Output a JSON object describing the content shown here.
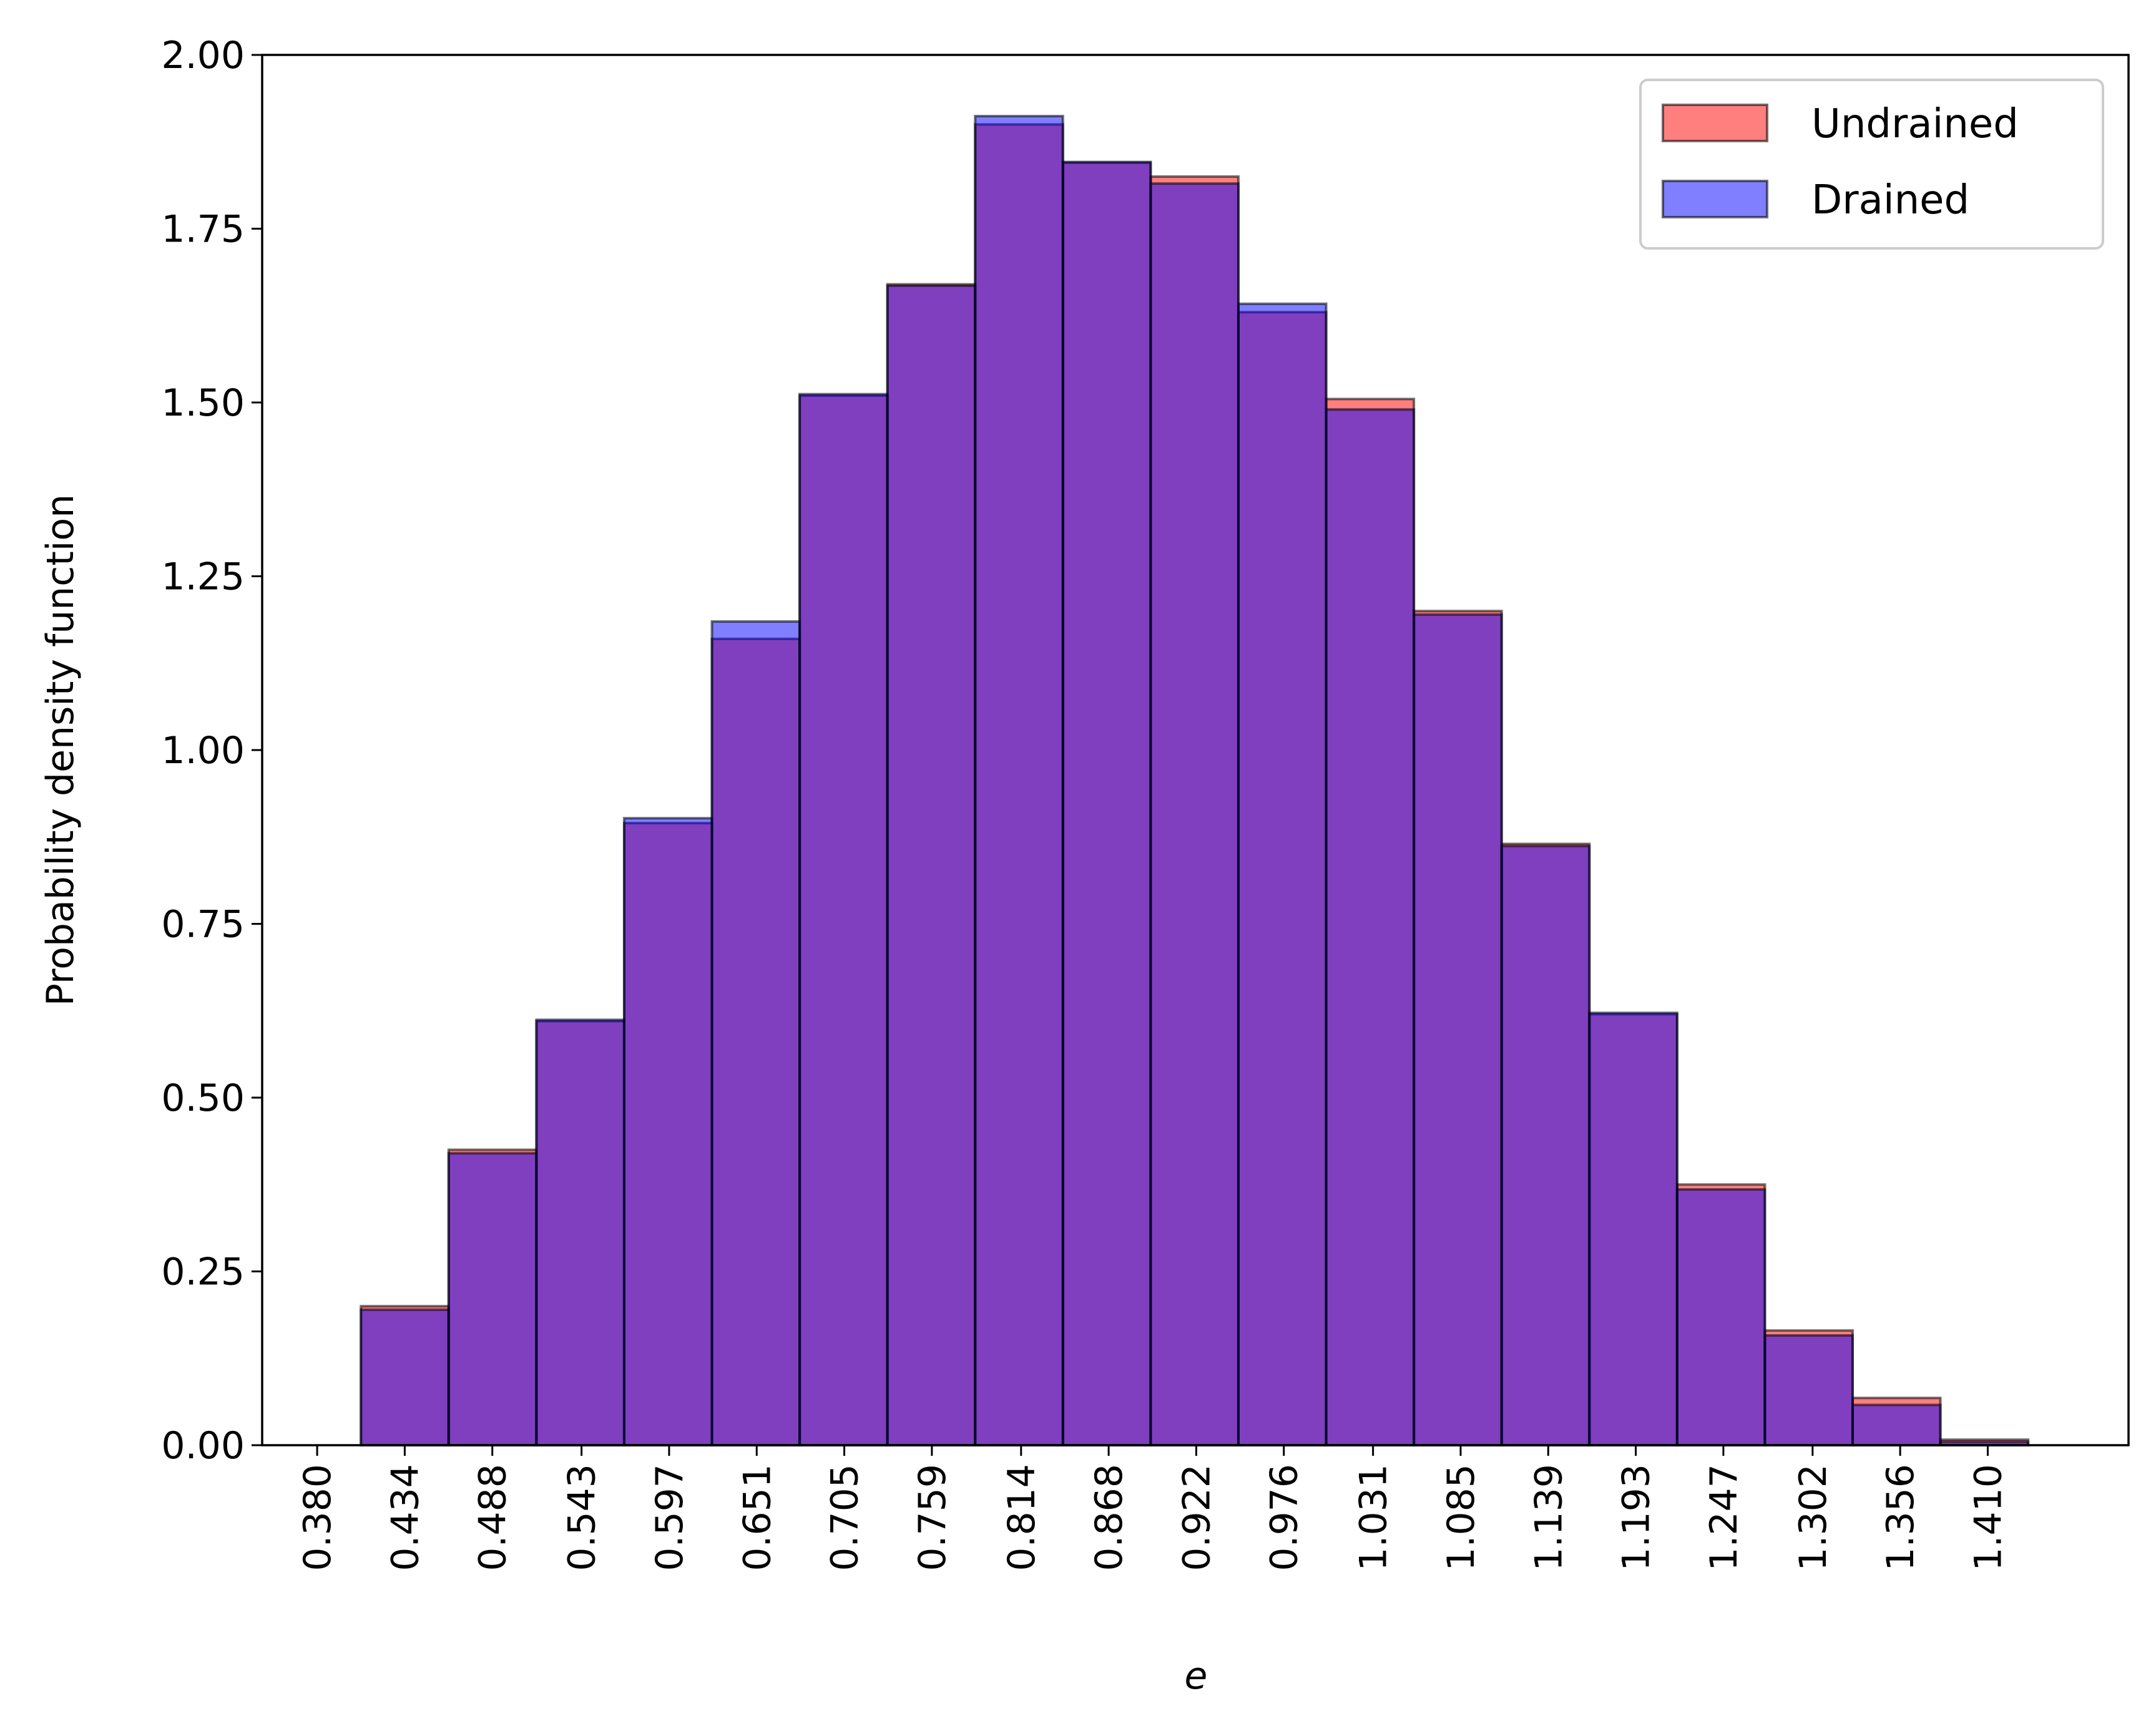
{
  "chart_data": {
    "type": "bar",
    "xlabel": "e",
    "ylabel": "Probability density function",
    "ylim": [
      0,
      2.0
    ],
    "xlim": [
      0.3461,
      1.4968
    ],
    "grid": false,
    "legend_position": "top-right",
    "x_ticks": [
      0.38,
      0.434,
      0.488,
      0.543,
      0.597,
      0.651,
      0.705,
      0.759,
      0.814,
      0.868,
      0.922,
      0.976,
      1.031,
      1.085,
      1.139,
      1.193,
      1.247,
      1.302,
      1.356,
      1.41
    ],
    "x_tick_labels": [
      "0.380",
      "0.434",
      "0.488",
      "0.543",
      "0.597",
      "0.651",
      "0.705",
      "0.759",
      "0.814",
      "0.868",
      "0.922",
      "0.976",
      "1.031",
      "1.085",
      "1.139",
      "1.193",
      "1.247",
      "1.302",
      "1.356",
      "1.410"
    ],
    "y_ticks": [
      0.0,
      0.25,
      0.5,
      0.75,
      1.0,
      1.25,
      1.5,
      1.75,
      2.0
    ],
    "y_tick_labels": [
      "0.00",
      "0.25",
      "0.50",
      "0.75",
      "1.00",
      "1.25",
      "1.50",
      "1.75",
      "2.00"
    ],
    "bin_edges": [
      0.407,
      0.4611,
      0.5152,
      0.5693,
      0.6234,
      0.6775,
      0.7316,
      0.7857,
      0.8398,
      0.8939,
      0.948,
      1.0021,
      1.0562,
      1.1103,
      1.1644,
      1.2185,
      1.2726,
      1.3267,
      1.3808,
      1.4349,
      1.489
    ],
    "series": [
      {
        "name": "Undrained",
        "color": "#ff0000",
        "opacity": 0.5,
        "values": [
          0.2,
          0.425,
          0.61,
          0.895,
          1.16,
          1.51,
          1.67,
          1.9,
          1.845,
          1.825,
          1.63,
          1.505,
          1.2,
          0.865,
          0.62,
          0.375,
          0.165,
          0.068,
          0.008,
          0.0
        ]
      },
      {
        "name": "Drained",
        "color": "#0000ff",
        "opacity": 0.5,
        "values": [
          0.195,
          0.42,
          0.612,
          0.902,
          1.185,
          1.512,
          1.668,
          1.912,
          1.846,
          1.815,
          1.642,
          1.49,
          1.195,
          0.862,
          0.622,
          0.368,
          0.158,
          0.058,
          0.005,
          0.0
        ]
      }
    ]
  }
}
